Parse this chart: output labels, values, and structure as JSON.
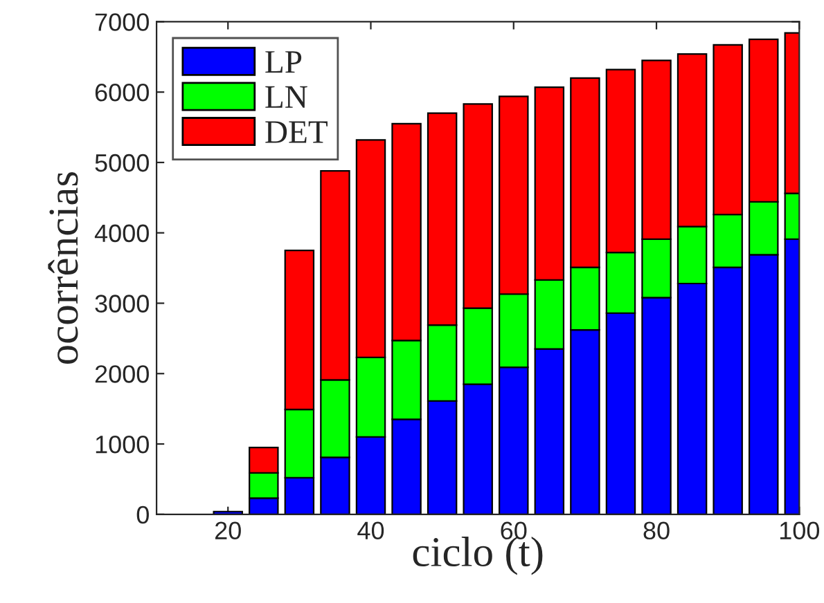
{
  "chart_data": {
    "type": "bar",
    "stacked": true,
    "xlabel": "ciclo (t)",
    "ylabel": "ocorrências",
    "x": [
      10,
      15,
      20,
      25,
      30,
      35,
      40,
      45,
      50,
      55,
      60,
      65,
      70,
      75,
      80,
      85,
      90,
      95,
      100
    ],
    "xlim": [
      10,
      100
    ],
    "xticks": [
      20,
      40,
      60,
      80,
      100
    ],
    "ylim": [
      0,
      7000
    ],
    "yticks": [
      0,
      1000,
      2000,
      3000,
      4000,
      5000,
      6000,
      7000
    ],
    "grid": false,
    "legend": "top left",
    "series": [
      {
        "name": "LP",
        "color": "#0000ff",
        "values": [
          null,
          null,
          40,
          230,
          520,
          810,
          1100,
          1350,
          1610,
          1850,
          2090,
          2350,
          2620,
          2860,
          3080,
          3280,
          3510,
          3690,
          3910
        ]
      },
      {
        "name": "LN",
        "color": "#00ff00",
        "values": [
          0,
          0,
          0,
          360,
          970,
          1100,
          1130,
          1120,
          1080,
          1080,
          1040,
          980,
          890,
          860,
          830,
          810,
          750,
          750,
          650
        ]
      },
      {
        "name": "DET",
        "color": "#ff0000",
        "values": [
          0,
          0,
          0,
          360,
          2260,
          2970,
          3090,
          3080,
          3010,
          2900,
          2810,
          2740,
          2690,
          2600,
          2540,
          2450,
          2410,
          2310,
          2280
        ]
      }
    ]
  }
}
